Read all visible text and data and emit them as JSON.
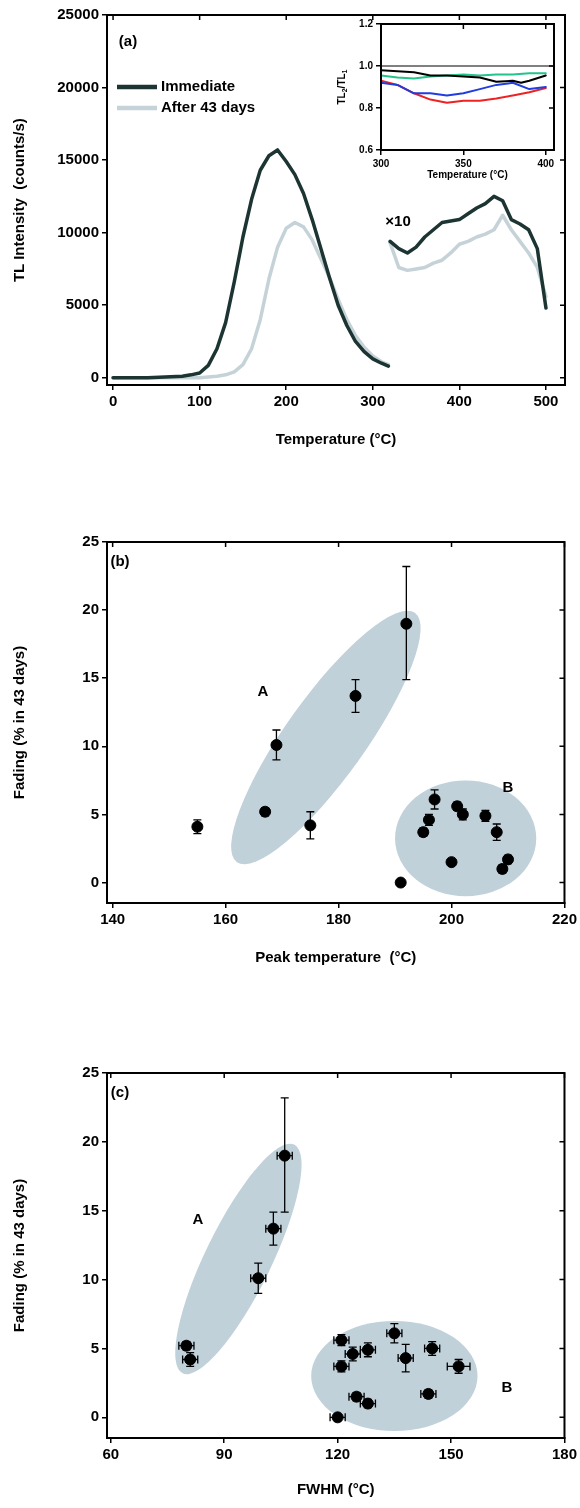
{
  "chart_data": [
    {
      "type": "line",
      "xlabel": "Temperature (°C)",
      "ylabel": "TL Intensity  (counts/s)",
      "xlim": [
        -7,
        522
      ],
      "xticks": [
        0,
        100,
        200,
        300,
        400,
        500
      ],
      "ylim": [
        -500,
        25000
      ],
      "yticks": [
        0,
        5000,
        10000,
        15000,
        20000,
        25000
      ],
      "legend": "top left",
      "marker": "none",
      "line_style": "solid",
      "annotations": [
        "(a)",
        "×10"
      ],
      "series": [
        {
          "name": "Immediate",
          "color": "#1c3533",
          "x": [
            0,
            20,
            40,
            60,
            80,
            90,
            100,
            110,
            120,
            130,
            140,
            150,
            160,
            170,
            180,
            190,
            200,
            210,
            220,
            230,
            240,
            250,
            260,
            270,
            280,
            290,
            300,
            310,
            318,
            319,
            320,
            330,
            340,
            350,
            360,
            370,
            380,
            390,
            400,
            410,
            420,
            430,
            440,
            450,
            460,
            470,
            480,
            490,
            500
          ],
          "values": [
            0,
            0,
            0,
            50,
            100,
            200,
            330,
            850,
            2000,
            3800,
            6600,
            9700,
            12300,
            14300,
            15300,
            15700,
            14900,
            14000,
            12700,
            10900,
            8900,
            6900,
            5000,
            3600,
            2500,
            1800,
            1300,
            1000,
            800,
            null,
            9400,
            8900,
            8600,
            9000,
            9700,
            10200,
            10700,
            10800,
            10900,
            11300,
            11700,
            12000,
            12500,
            12200,
            10900,
            10600,
            10200,
            8900,
            4800
          ]
        },
        {
          "name": "After 43 days",
          "color": "#c5d3d9",
          "x": [
            0,
            20,
            40,
            60,
            80,
            100,
            110,
            120,
            130,
            140,
            150,
            160,
            170,
            180,
            190,
            200,
            210,
            220,
            230,
            240,
            250,
            260,
            270,
            280,
            290,
            300,
            310,
            318,
            319,
            320,
            330,
            340,
            350,
            360,
            370,
            380,
            390,
            400,
            410,
            420,
            430,
            440,
            450,
            460,
            470,
            480,
            490,
            500
          ],
          "values": [
            0,
            0,
            0,
            0,
            0,
            0,
            50,
            100,
            200,
            400,
            900,
            2000,
            4000,
            6800,
            9000,
            10300,
            10700,
            10400,
            9500,
            8200,
            6900,
            5400,
            4000,
            2900,
            2100,
            1500,
            1100,
            900,
            null,
            9300,
            7600,
            7400,
            7500,
            7600,
            7900,
            8100,
            8600,
            9200,
            9400,
            9700,
            9900,
            10200,
            11200,
            10200,
            9400,
            8600,
            7600,
            5600
          ]
        }
      ]
    },
    {
      "type": "line",
      "xlabel": "Temperature (°C)",
      "ylabel": "TL$_{2}$/TL$_{1}$",
      "xlim": [
        300,
        405
      ],
      "xticks": [
        300,
        350,
        400
      ],
      "ylim": [
        0.6,
        1.2
      ],
      "yticks": [
        0.6,
        0.8,
        {
          "value": 1,
          "label": "1.0"
        },
        1.2
      ],
      "marker": "none",
      "line_style": "solid",
      "ref_lines": [
        {
          "axis": "y",
          "value": 1,
          "color": "#000000"
        }
      ],
      "series": [
        {
          "color": "#000000",
          "x": [
            300,
            310,
            320,
            330,
            340,
            350,
            360,
            370,
            380,
            385,
            390,
            400
          ],
          "values": [
            0.98,
            0.975,
            0.97,
            0.955,
            0.955,
            0.95,
            0.945,
            0.925,
            0.93,
            0.92,
            0.93,
            0.955
          ]
        },
        {
          "color": "#22c48a",
          "x": [
            300,
            310,
            320,
            330,
            340,
            350,
            360,
            370,
            380,
            390,
            400
          ],
          "values": [
            0.955,
            0.945,
            0.94,
            0.95,
            0.955,
            0.96,
            0.955,
            0.96,
            0.96,
            0.965,
            0.965
          ]
        },
        {
          "color": "#1f3de0",
          "x": [
            300,
            310,
            320,
            330,
            340,
            350,
            360,
            370,
            380,
            390,
            400
          ],
          "values": [
            0.92,
            0.91,
            0.87,
            0.87,
            0.86,
            0.87,
            0.89,
            0.91,
            0.92,
            0.89,
            0.9
          ]
        },
        {
          "color": "#ee2222",
          "x": [
            300,
            310,
            320,
            330,
            340,
            350,
            360,
            370,
            380,
            390,
            400
          ],
          "values": [
            0.93,
            0.91,
            0.87,
            0.84,
            0.825,
            0.835,
            0.835,
            0.845,
            0.86,
            0.875,
            0.895
          ]
        }
      ]
    },
    {
      "type": "scatter",
      "xlabel": "Peak temperature  (°C)",
      "ylabel": "Fading (% in 43 days)",
      "xlim": [
        139,
        220
      ],
      "xticks": [
        140,
        160,
        180,
        200,
        220
      ],
      "ylim": [
        -1.5,
        25
      ],
      "yticks": [
        0,
        5,
        10,
        15,
        20,
        25
      ],
      "marker": "circle",
      "annotations": [
        "(b)",
        "A",
        "B"
      ],
      "series": [
        {
          "color": "#000000",
          "x": [
            155,
            167,
            169,
            175,
            183,
            192,
            191,
            195,
            196,
            197,
            200,
            201,
            202,
            206,
            208,
            209,
            210
          ],
          "values": [
            4.1,
            5.2,
            10.1,
            4.2,
            13.7,
            19,
            0,
            3.7,
            4.6,
            6.1,
            1.5,
            5.6,
            5,
            4.9,
            3.7,
            1,
            1.7
          ],
          "errors": [
            0.5,
            0.3,
            1.1,
            1,
            1.2,
            [
              14.9,
              23.2
            ],
            null,
            0.3,
            0.4,
            0.7,
            null,
            0.3,
            0.4,
            0.4,
            0.6,
            0.3,
            0.3
          ]
        }
      ]
    },
    {
      "type": "scatter",
      "xlabel": "FWHM (°C)",
      "ylabel": "Fading (% in 43 days)",
      "xlim": [
        59,
        180
      ],
      "xticks": [
        60,
        90,
        120,
        150,
        180
      ],
      "ylim": [
        -1.5,
        25
      ],
      "yticks": [
        0,
        5,
        10,
        15,
        20,
        25
      ],
      "marker": "circle",
      "annotations": [
        "(c)",
        "A",
        "B"
      ],
      "series": [
        {
          "color": "#000000",
          "x": [
            106,
            103,
            99,
            80,
            81,
            121,
            121,
            124,
            128,
            135,
            138,
            145,
            152,
            144,
            125,
            128,
            120
          ],
          "values": [
            19,
            13.7,
            10.1,
            5.2,
            4.2,
            5.6,
            3.7,
            4.6,
            4.9,
            6.1,
            4.3,
            5,
            3.7,
            1.7,
            1.5,
            1,
            0
          ],
          "errors": [
            [
              14.9,
              23.2
            ],
            1.2,
            1.1,
            0.3,
            0.5,
            0.4,
            0.4,
            0.5,
            0.5,
            0.7,
            1,
            0.5,
            0.5,
            0.3,
            0.3,
            0.3,
            null
          ],
          "xerrors": [
            2,
            2,
            2,
            2,
            2,
            2,
            2,
            2,
            2,
            2,
            2,
            2,
            3,
            2,
            2,
            2,
            2
          ]
        }
      ]
    }
  ]
}
